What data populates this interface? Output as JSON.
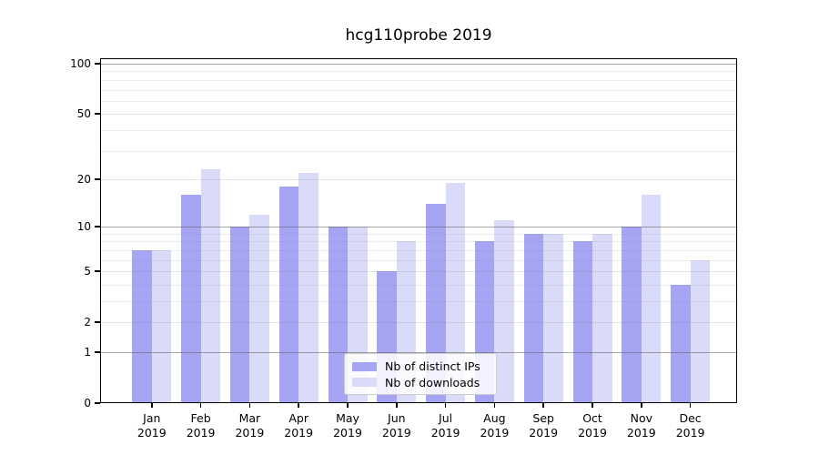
{
  "title": "hcg110probe 2019",
  "chart_data": {
    "type": "bar",
    "title": "hcg110probe 2019",
    "categories": [
      "Jan",
      "Feb",
      "Mar",
      "Apr",
      "May",
      "Jun",
      "Jul",
      "Aug",
      "Sep",
      "Oct",
      "Nov",
      "Dec"
    ],
    "year_label": "2019",
    "series": [
      {
        "name": "Nb of distinct IPs",
        "color": "#a5a5f3",
        "values": [
          7,
          16,
          10,
          18,
          10,
          5,
          14,
          8,
          9,
          8,
          10,
          4
        ]
      },
      {
        "name": "Nb of downloads",
        "color": "#dadaf9",
        "values": [
          7,
          23,
          12,
          22,
          10,
          8,
          19,
          11,
          9,
          9,
          16,
          6
        ]
      }
    ],
    "xlabel": "",
    "ylabel": "",
    "yscale": "log1p",
    "ylim": [
      0,
      108
    ],
    "ytick_values": [
      0,
      1,
      2,
      5,
      10,
      20,
      50,
      100
    ],
    "ytick_labels": [
      "0",
      "1",
      "2",
      "5",
      "10",
      "20",
      "50",
      "100"
    ],
    "minor_gridline_values": [
      3,
      4,
      6,
      7,
      8,
      9,
      30,
      40,
      60,
      70,
      80,
      90
    ],
    "grid": true,
    "legend_position": "inside lower-center"
  },
  "legend": {
    "items": [
      {
        "label": "Nb of distinct IPs",
        "color": "#a5a5f3"
      },
      {
        "label": "Nb of downloads",
        "color": "#dadaf9"
      }
    ]
  },
  "colors": {
    "background": "#ffffff",
    "spine": "#000000",
    "major_gridline": "#b0b0b0",
    "minor_gridline": "#ececec",
    "bar_distinct_ips": "#a5a5f3",
    "bar_downloads": "#dadaf9",
    "legend_border": "#cccccc",
    "text": "#000000"
  }
}
